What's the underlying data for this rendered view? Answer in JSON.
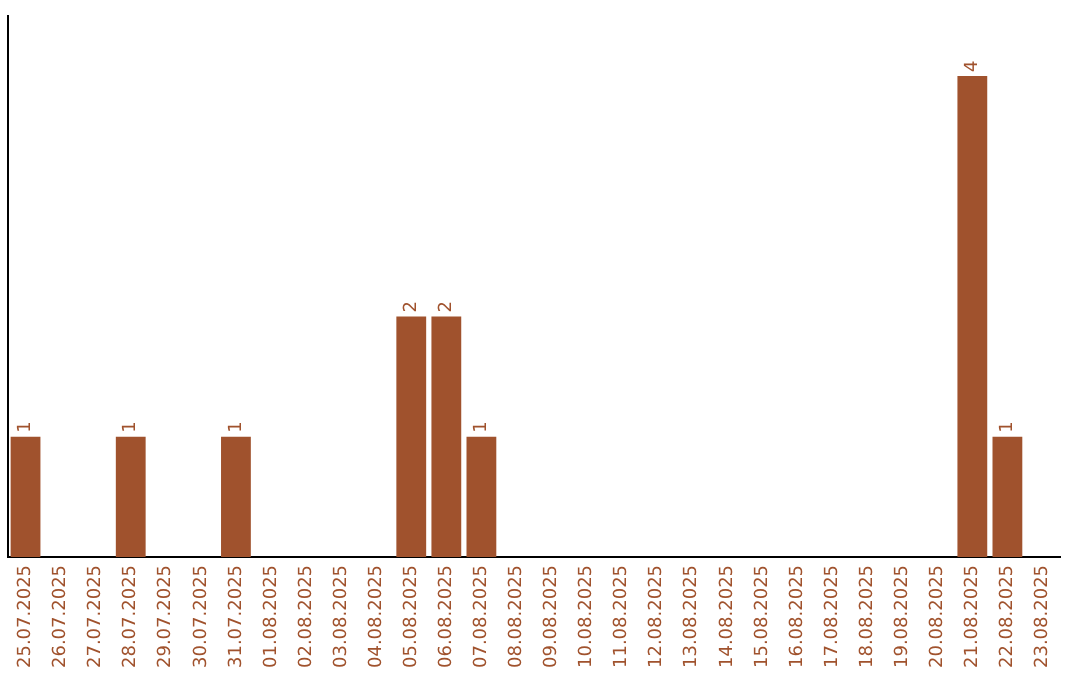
{
  "chart_data": {
    "type": "bar",
    "categories": [
      "25.07.2025",
      "26.07.2025",
      "27.07.2025",
      "28.07.2025",
      "29.07.2025",
      "30.07.2025",
      "31.07.2025",
      "01.08.2025",
      "02.08.2025",
      "03.08.2025",
      "04.08.2025",
      "05.08.2025",
      "06.08.2025",
      "07.08.2025",
      "08.08.2025",
      "09.08.2025",
      "10.08.2025",
      "11.08.2025",
      "12.08.2025",
      "13.08.2025",
      "14.08.2025",
      "15.08.2025",
      "16.08.2025",
      "17.08.2025",
      "18.08.2025",
      "19.08.2025",
      "20.08.2025",
      "21.08.2025",
      "22.08.2025",
      "23.08.2025"
    ],
    "values": [
      1,
      0,
      0,
      1,
      0,
      0,
      1,
      0,
      0,
      0,
      0,
      2,
      2,
      1,
      0,
      0,
      0,
      0,
      0,
      0,
      0,
      0,
      0,
      0,
      0,
      0,
      0,
      4,
      1,
      0
    ],
    "value_labels": [
      "1",
      null,
      null,
      "1",
      null,
      null,
      "1",
      null,
      null,
      null,
      null,
      "2",
      "2",
      "1",
      null,
      null,
      null,
      null,
      null,
      null,
      null,
      null,
      null,
      null,
      null,
      null,
      null,
      "4",
      "1",
      null
    ],
    "color": "#a0522d",
    "tick_labels": "x",
    "grid": false,
    "legend": false
  }
}
